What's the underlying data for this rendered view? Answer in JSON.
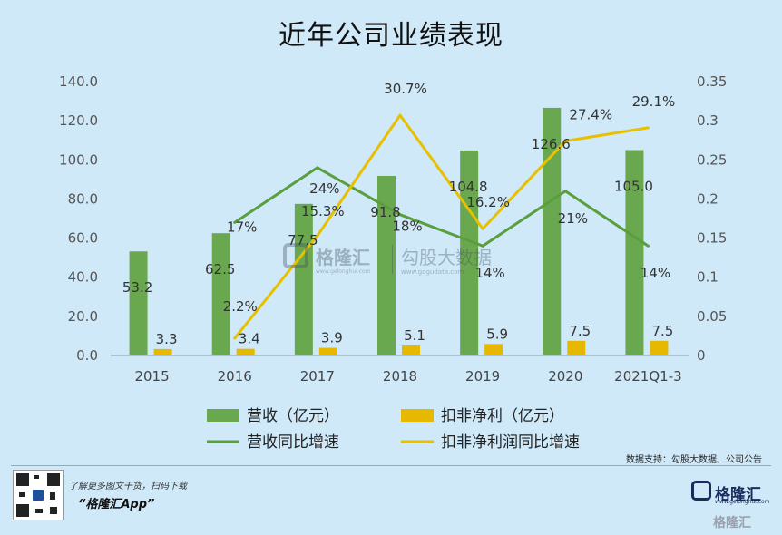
{
  "title": "近年公司业绩表现",
  "source_note": "数据支持：勾股大数据、公司公告",
  "promo": {
    "line1": "了解更多图文干货，扫码下载",
    "line2": "“格隆汇App”"
  },
  "branding": {
    "logo_name": "格隆汇",
    "logo_url": "www.gelonghui.com",
    "watermark_bottom": "格隆汇",
    "watermark_center_1": "格隆汇",
    "watermark_center_1_url": "www.gelonghui.com",
    "watermark_center_2": "勾股大数据",
    "watermark_center_2_url": "www.gogudata.com"
  },
  "colors": {
    "revenue": "#6aa84f",
    "profit": "#e6b800",
    "revenue_growth": "#5a9e3e",
    "profit_growth": "#e8c000"
  },
  "chart_data": {
    "type": "bar",
    "categories": [
      "2015",
      "2016",
      "2017",
      "2018",
      "2019",
      "2020",
      "2021Q1-3"
    ],
    "y_left": {
      "range": [
        0,
        140
      ],
      "ticks": [
        "0.0",
        "20.0",
        "40.0",
        "60.0",
        "80.0",
        "100.0",
        "120.0",
        "140.0"
      ]
    },
    "y_right": {
      "range": [
        0,
        0.35
      ],
      "ticks": [
        "0",
        "0.05",
        "0.1",
        "0.15",
        "0.2",
        "0.25",
        "0.3",
        "0.35"
      ]
    },
    "bar_series": [
      {
        "name": "营收（亿元）",
        "axis": "left",
        "values": [
          53.2,
          62.5,
          77.5,
          91.8,
          104.8,
          126.6,
          105.0
        ],
        "labels": [
          "53.2",
          "62.5",
          "77.5",
          "91.8",
          "104.8",
          "126.6",
          "105.0"
        ]
      },
      {
        "name": "扣非净利（亿元）",
        "axis": "left",
        "values": [
          3.3,
          3.4,
          3.9,
          5.1,
          5.9,
          7.5,
          7.5
        ],
        "labels": [
          "3.3",
          "3.4",
          "3.9",
          "5.1",
          "5.9",
          "7.5",
          "7.5"
        ]
      }
    ],
    "line_series": [
      {
        "name": "营收同比增速",
        "axis": "right",
        "categories": [
          "2016",
          "2017",
          "2018",
          "2019",
          "2020",
          "2021Q1-3"
        ],
        "values": [
          0.17,
          0.24,
          0.18,
          0.14,
          0.21,
          0.14
        ],
        "labels": [
          "17%",
          "24%",
          "18%",
          "14%",
          "21%",
          "14%"
        ]
      },
      {
        "name": "扣非净利润同比增速",
        "axis": "right",
        "categories": [
          "2016",
          "2017",
          "2018",
          "2019",
          "2020",
          "2021Q1-3"
        ],
        "values": [
          0.022,
          0.153,
          0.307,
          0.162,
          0.274,
          0.291
        ],
        "labels": [
          "2.2%",
          "15.3%",
          "30.7%",
          "16.2%",
          "27.4%",
          "29.1%"
        ]
      }
    ],
    "legend_position": "bottom",
    "grid": false
  }
}
